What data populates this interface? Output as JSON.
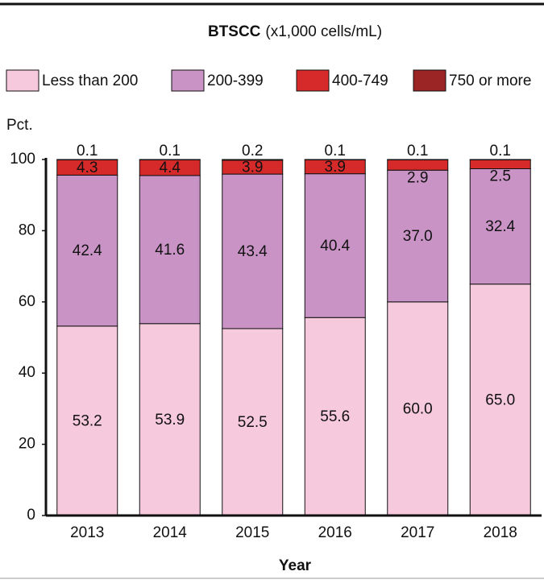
{
  "chart_data": {
    "type": "stacked-bar",
    "title": "BTSCC",
    "subtitle": "(x1,000 cells/mL)",
    "y_label": "Pct.",
    "x_label": "Year",
    "categories": [
      "2013",
      "2014",
      "2015",
      "2016",
      "2017",
      "2018"
    ],
    "ylim": [
      0,
      100
    ],
    "yticks": [
      0,
      20,
      40,
      60,
      80,
      100
    ],
    "series": [
      {
        "name": "Less than 200",
        "color": "#f6c9dc",
        "values": [
          53.2,
          53.9,
          52.5,
          55.6,
          60,
          65
        ],
        "value_labels": [
          "53.2",
          "53.9",
          "52.5",
          "55.6",
          "60.0",
          "65.0"
        ]
      },
      {
        "name": "200-399",
        "color": "#c993c6",
        "values": [
          42.4,
          41.6,
          43.4,
          40.4,
          37,
          32.4
        ],
        "value_labels": [
          "42.4",
          "41.6",
          "43.4",
          "40.4",
          "37.0",
          "32.4"
        ]
      },
      {
        "name": "400-749",
        "color": "#d62a2a",
        "values": [
          4.3,
          4.4,
          3.9,
          3.9,
          2.9,
          2.5
        ],
        "value_labels": [
          "4.3",
          "4.4",
          "3.9",
          "3.9",
          "2.9",
          "2.5"
        ]
      },
      {
        "name": "750 or more",
        "color": "#9b2424",
        "values": [
          0.1,
          0.1,
          0.2,
          0.1,
          0.1,
          0.1
        ],
        "value_labels": [
          "0.1",
          "0.1",
          "0.2",
          "0.1",
          "0.1",
          "0.1"
        ]
      }
    ]
  }
}
